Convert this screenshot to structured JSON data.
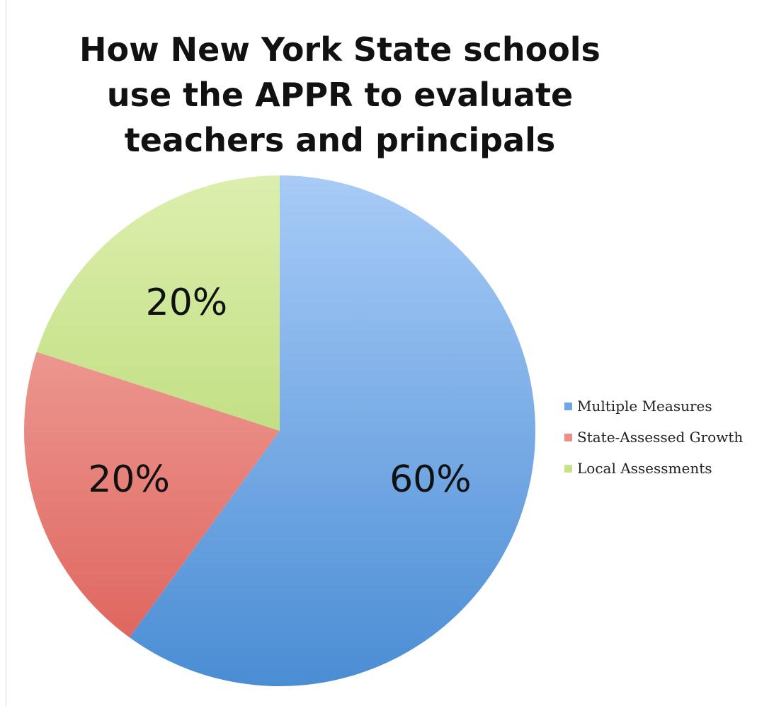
{
  "chart_data": {
    "type": "pie",
    "title": "How New York State schools use the APPR to evaluate teachers and principals",
    "slices": [
      {
        "label": "Multiple Measures",
        "value": 60,
        "display": "60%",
        "color": "#6fa7e4",
        "color_light": "#a8cbf7",
        "color_dark": "#4a8dd4"
      },
      {
        "label": "State-Assessed Growth",
        "value": 20,
        "display": "20%",
        "color": "#ec8e87",
        "color_light": "#f5b3ad",
        "color_dark": "#dc5f57"
      },
      {
        "label": "Local Assessments",
        "value": 20,
        "display": "20%",
        "color": "#c6e28a",
        "color_light": "#dcefae",
        "color_dark": "#aad05b"
      }
    ],
    "start_angle": "12 o'clock",
    "direction": "clockwise",
    "legend_position": "right"
  }
}
